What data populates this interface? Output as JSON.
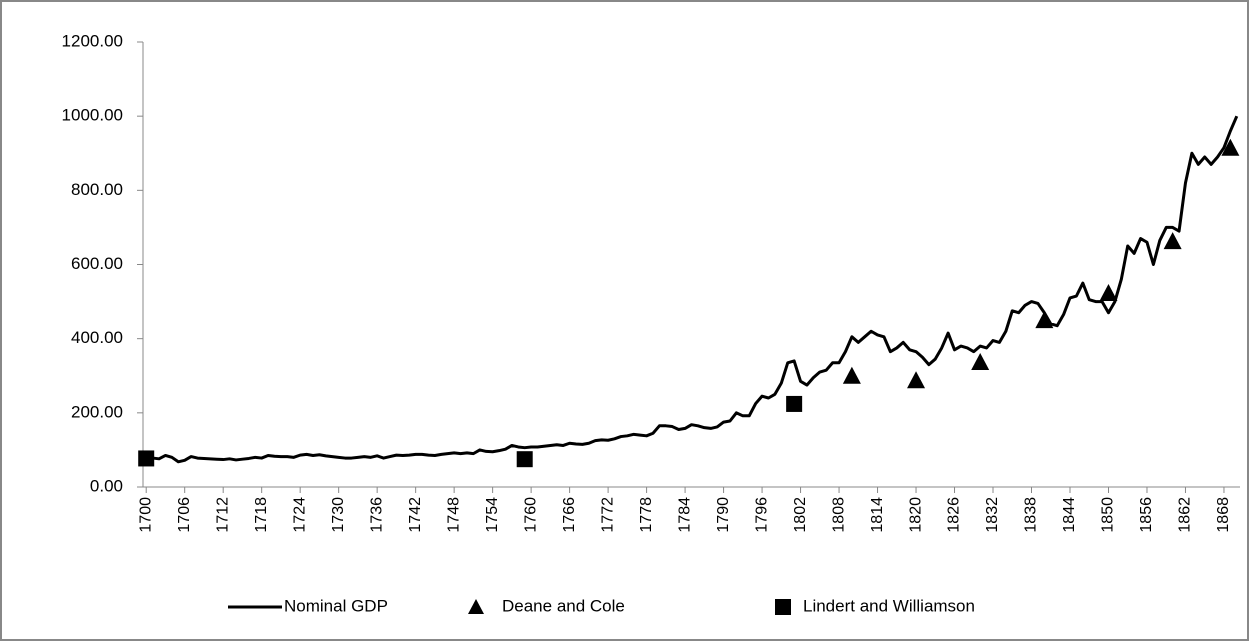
{
  "chart_data": {
    "type": "line",
    "xticks": [
      1700,
      1706,
      1712,
      1718,
      1724,
      1730,
      1736,
      1742,
      1748,
      1754,
      1760,
      1766,
      1772,
      1778,
      1784,
      1790,
      1796,
      1802,
      1808,
      1814,
      1820,
      1826,
      1832,
      1838,
      1844,
      1850,
      1856,
      1862,
      1868
    ],
    "xlim": [
      1699.5,
      1870.5
    ],
    "ylim": [
      0,
      1200
    ],
    "yticks": [
      {
        "value": 0,
        "label": "0.00"
      },
      {
        "value": 200,
        "label": "200.00"
      },
      {
        "value": 400,
        "label": "400.00"
      },
      {
        "value": 600,
        "label": "600.00"
      },
      {
        "value": 800,
        "label": "800.00"
      },
      {
        "value": 1000,
        "label": "1000.00"
      },
      {
        "value": 1200,
        "label": "1200.00"
      }
    ],
    "series": [
      {
        "name": "Nominal GDP",
        "kind": "line",
        "color": "#000000",
        "x": [
          1700,
          1701,
          1702,
          1703,
          1704,
          1705,
          1706,
          1707,
          1708,
          1709,
          1710,
          1711,
          1712,
          1713,
          1714,
          1715,
          1716,
          1717,
          1718,
          1719,
          1720,
          1721,
          1722,
          1723,
          1724,
          1725,
          1726,
          1727,
          1728,
          1729,
          1730,
          1731,
          1732,
          1733,
          1734,
          1735,
          1736,
          1737,
          1738,
          1739,
          1740,
          1741,
          1742,
          1743,
          1744,
          1745,
          1746,
          1747,
          1748,
          1749,
          1750,
          1751,
          1752,
          1753,
          1754,
          1755,
          1756,
          1757,
          1758,
          1759,
          1760,
          1761,
          1762,
          1763,
          1764,
          1765,
          1766,
          1767,
          1768,
          1769,
          1770,
          1771,
          1772,
          1773,
          1774,
          1775,
          1776,
          1777,
          1778,
          1779,
          1780,
          1781,
          1782,
          1783,
          1784,
          1785,
          1786,
          1787,
          1788,
          1789,
          1790,
          1791,
          1792,
          1793,
          1794,
          1795,
          1796,
          1797,
          1798,
          1799,
          1800,
          1801,
          1802,
          1803,
          1804,
          1805,
          1806,
          1807,
          1808,
          1809,
          1810,
          1811,
          1812,
          1813,
          1814,
          1815,
          1816,
          1817,
          1818,
          1819,
          1820,
          1821,
          1822,
          1823,
          1824,
          1825,
          1826,
          1827,
          1828,
          1829,
          1830,
          1831,
          1832,
          1833,
          1834,
          1835,
          1836,
          1837,
          1838,
          1839,
          1840,
          1841,
          1842,
          1843,
          1844,
          1845,
          1846,
          1847,
          1848,
          1849,
          1850,
          1851,
          1852,
          1853,
          1854,
          1855,
          1856,
          1857,
          1858,
          1859,
          1860,
          1861,
          1862,
          1863,
          1864,
          1865,
          1866,
          1867,
          1868,
          1869,
          1870
        ],
        "values": [
          80,
          78,
          76,
          85,
          80,
          68,
          72,
          82,
          78,
          77,
          76,
          75,
          74,
          76,
          73,
          75,
          77,
          80,
          78,
          85,
          83,
          82,
          82,
          80,
          86,
          88,
          85,
          87,
          84,
          82,
          80,
          78,
          78,
          80,
          82,
          80,
          84,
          78,
          82,
          86,
          85,
          86,
          88,
          88,
          86,
          85,
          88,
          90,
          92,
          90,
          92,
          90,
          100,
          96,
          95,
          98,
          102,
          112,
          108,
          106,
          108,
          108,
          110,
          112,
          114,
          112,
          118,
          116,
          115,
          118,
          125,
          127,
          126,
          130,
          136,
          138,
          142,
          140,
          138,
          145,
          165,
          165,
          163,
          155,
          158,
          168,
          165,
          160,
          158,
          162,
          175,
          178,
          200,
          192,
          192,
          225,
          245,
          240,
          250,
          280,
          335,
          340,
          285,
          275,
          295,
          310,
          315,
          335,
          335,
          365,
          405,
          390,
          405,
          420,
          410,
          405,
          365,
          375,
          390,
          370,
          365,
          350,
          330,
          345,
          375,
          415,
          370,
          380,
          375,
          365,
          380,
          375,
          395,
          390,
          420,
          475,
          470,
          490,
          500,
          495,
          470,
          440,
          435,
          465,
          510,
          515,
          550,
          505,
          500,
          500,
          470,
          500,
          560,
          650,
          630,
          670,
          660,
          600,
          665,
          700,
          700,
          690,
          820,
          900,
          870,
          890,
          870,
          890,
          915,
          960,
          1000
        ]
      },
      {
        "name": "Deane and Cole",
        "kind": "triangle",
        "color": "#000000",
        "x": [
          1810,
          1820,
          1830,
          1840,
          1850,
          1860,
          1869
        ],
        "values": [
          300,
          288,
          337,
          450,
          523,
          663,
          915
        ]
      },
      {
        "name": "Lindert and Williamson",
        "kind": "square",
        "color": "#000000",
        "x": [
          1700,
          1759,
          1801
        ],
        "values": [
          77,
          75,
          224
        ]
      }
    ]
  }
}
